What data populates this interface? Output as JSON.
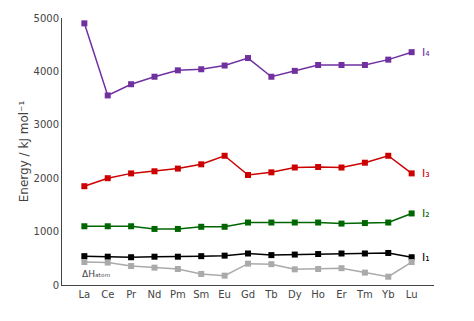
{
  "chart_data": {
    "type": "line",
    "categories": [
      "La",
      "Ce",
      "Pr",
      "Nd",
      "Pm",
      "Sm",
      "Eu",
      "Gd",
      "Tb",
      "Dy",
      "Ho",
      "Er",
      "Tm",
      "Yb",
      "Lu"
    ],
    "series": [
      {
        "name": "I₄",
        "color": "#7030a0",
        "values": [
          4900,
          3550,
          3760,
          3900,
          4020,
          4040,
          4110,
          4250,
          3900,
          4010,
          4120,
          4120,
          4120,
          4220,
          4360
        ]
      },
      {
        "name": "I₃",
        "color": "#cc0000",
        "values": [
          1850,
          2000,
          2090,
          2130,
          2180,
          2260,
          2420,
          2060,
          2110,
          2200,
          2210,
          2200,
          2290,
          2420,
          2090
        ]
      },
      {
        "name": "I₂",
        "color": "#006600",
        "values": [
          1100,
          1100,
          1100,
          1050,
          1050,
          1090,
          1090,
          1170,
          1170,
          1170,
          1170,
          1150,
          1160,
          1170,
          1340
        ]
      },
      {
        "name": "I₁",
        "color": "#000000",
        "values": [
          540,
          530,
          520,
          530,
          530,
          540,
          550,
          590,
          560,
          570,
          580,
          590,
          590,
          600,
          520
        ]
      },
      {
        "name": "ΔHₐₜₒₘ",
        "color": "#aaaaaa",
        "values": [
          430,
          420,
          355,
          325,
          300,
          207,
          175,
          400,
          390,
          293,
          300,
          315,
          232,
          155,
          430
        ]
      }
    ],
    "y_label": "Energy / kJ mol⁻¹",
    "ylim": [
      0,
      5000
    ],
    "yticks": [
      0,
      1000,
      2000,
      3000,
      4000,
      5000
    ],
    "marker": "square",
    "grid": false
  }
}
